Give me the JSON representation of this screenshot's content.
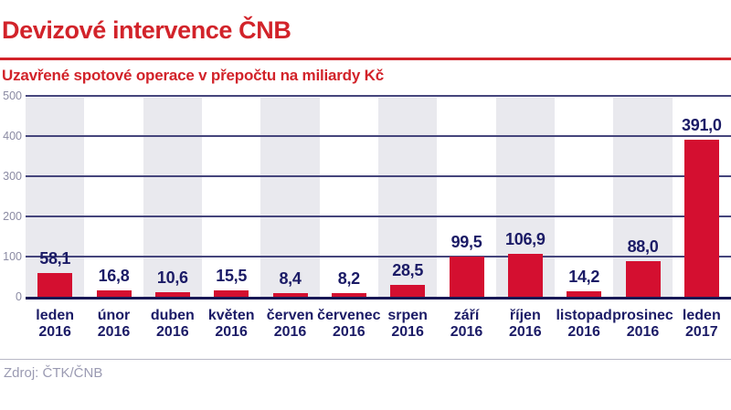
{
  "header": {
    "title": "Devizové intervence ČNB",
    "subtitle": "Uzavřené spotové operace v přepočtu na miliardy Kč"
  },
  "footer": {
    "source": "Zdroj: ČTK/ČNB"
  },
  "chart_data": {
    "type": "bar",
    "title": "Devizové intervence ČNB",
    "subtitle": "Uzavřené spotové operace v přepočtu na miliardy Kč",
    "unit": "miliardy Kč",
    "categories": [
      "leden 2016",
      "únor 2016",
      "duben 2016",
      "květen 2016",
      "červen 2016",
      "červenec 2016",
      "srpen 2016",
      "září 2016",
      "říjen 2016",
      "listopad 2016",
      "prosinec 2016",
      "leden 2017"
    ],
    "values": [
      58.1,
      16.8,
      10.6,
      15.5,
      8.4,
      8.2,
      28.5,
      99.5,
      106.9,
      14.2,
      88.0,
      391.0
    ],
    "value_labels": [
      "58,1",
      "16,8",
      "10,6",
      "15,5",
      "8,4",
      "8,2",
      "28,5",
      "99,5",
      "106,9",
      "14,2",
      "88,0",
      "391,0"
    ],
    "xlabel": "",
    "ylabel": "",
    "ylim": [
      0,
      500
    ],
    "y_ticks": [
      0,
      100,
      200,
      300,
      400,
      500
    ],
    "grid": true,
    "legend": false,
    "alternating_column_stripes": true,
    "source": "Zdroj: ČTK/ČNB",
    "colors": {
      "accent_red": "#d2232a",
      "bar": "#d40f30",
      "label_navy": "#1b1b66",
      "grid": "#45457c",
      "baseline": "#181855",
      "stripe": "#e9e9ee",
      "tick_text": "#8b8ba3",
      "source_text": "#9a9ab2",
      "divider": "#b9b9c6"
    }
  }
}
